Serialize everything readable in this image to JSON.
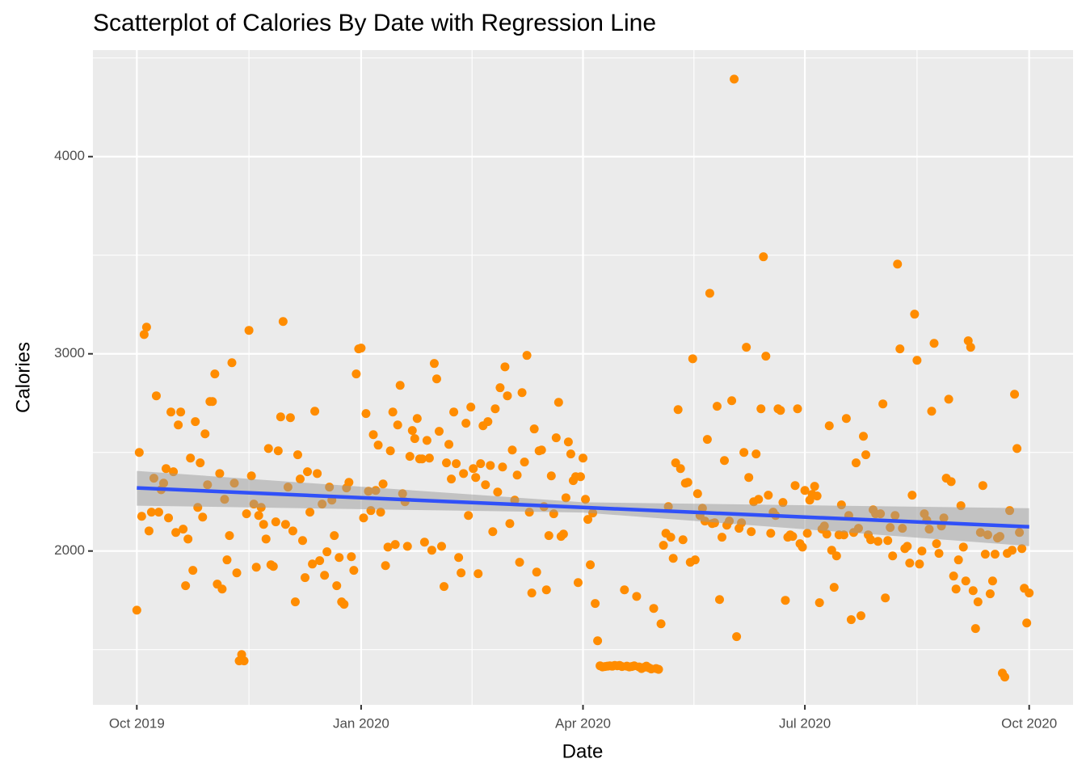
{
  "chart_data": {
    "type": "scatter",
    "title": "Scatterplot of Calories By Date with Regression Line",
    "x_label": "Date",
    "y_label": "Calories",
    "xlim": [
      -18,
      384
    ],
    "ylim": [
      1220,
      4540
    ],
    "xticks": [
      {
        "value": 0,
        "label": "Oct 2019"
      },
      {
        "value": 92,
        "label": "Jan 2020"
      },
      {
        "value": 183,
        "label": "Apr 2020"
      },
      {
        "value": 274,
        "label": "Jul 2020"
      },
      {
        "value": 366,
        "label": "Oct 2020"
      }
    ],
    "yticks": [
      2000,
      3000,
      4000
    ],
    "x_minor_ticks": [
      46,
      137.5,
      228.5,
      320
    ],
    "y_minor_ticks": [
      1500,
      2500,
      3500,
      4500
    ],
    "grid": true,
    "series": [
      {
        "name": "Calories",
        "color": "#ff8c00",
        "x": [
          0,
          1,
          2,
          3,
          4,
          5,
          6,
          7,
          8,
          9,
          10,
          11,
          12,
          13,
          14,
          15,
          16,
          17,
          18,
          19,
          20,
          21,
          22,
          23,
          24,
          25,
          26,
          27,
          28,
          29,
          30,
          31,
          32,
          33,
          34,
          35,
          36,
          37,
          38,
          39,
          40,
          41,
          42,
          43,
          44,
          45,
          46,
          47,
          48,
          49,
          50,
          51,
          52,
          53,
          54,
          55,
          56,
          57,
          58,
          59,
          60,
          61,
          62,
          63,
          64,
          65,
          66,
          67,
          68,
          69,
          70,
          71,
          72,
          73,
          74,
          75,
          76,
          77,
          78,
          79,
          80,
          81,
          82,
          83,
          84,
          85,
          86,
          87,
          88,
          89,
          90,
          91,
          92,
          93,
          94,
          95,
          96,
          97,
          98,
          99,
          100,
          101,
          102,
          103,
          104,
          105,
          106,
          107,
          108,
          109,
          110,
          111,
          112,
          113,
          114,
          115,
          116,
          117,
          118,
          119,
          120,
          121,
          122,
          123,
          124,
          125,
          126,
          127,
          128,
          129,
          130,
          131,
          132,
          133,
          134,
          135,
          136,
          137,
          138,
          139,
          140,
          141,
          142,
          143,
          144,
          145,
          146,
          147,
          148,
          149,
          150,
          151,
          152,
          153,
          154,
          155,
          156,
          157,
          158,
          159,
          160,
          161,
          162,
          163,
          164,
          165,
          166,
          167,
          168,
          169,
          170,
          171,
          172,
          173,
          174,
          175,
          176,
          177,
          178,
          179,
          180,
          181,
          182,
          183,
          184,
          185,
          186,
          187,
          188,
          189,
          190,
          191,
          192,
          193,
          194,
          195,
          196,
          197,
          198,
          199,
          200,
          201,
          202,
          203,
          204,
          205,
          206,
          207,
          208,
          209,
          210,
          211,
          212,
          213,
          214,
          215,
          216,
          217,
          218,
          219,
          220,
          221,
          222,
          223,
          224,
          225,
          226,
          227,
          228,
          229,
          230,
          231,
          232,
          233,
          234,
          235,
          236,
          237,
          238,
          239,
          240,
          241,
          242,
          243,
          244,
          245,
          246,
          247,
          248,
          249,
          250,
          251,
          252,
          253,
          254,
          255,
          256,
          257,
          258,
          259,
          260,
          261,
          262,
          263,
          264,
          265,
          266,
          267,
          268,
          269,
          270,
          271,
          272,
          273,
          274,
          275,
          276,
          277,
          278,
          279,
          280,
          281,
          282,
          283,
          284,
          285,
          286,
          287,
          288,
          289,
          290,
          291,
          292,
          293,
          294,
          295,
          296,
          297,
          298,
          299,
          300,
          301,
          302,
          303,
          304,
          305,
          306,
          307,
          308,
          309,
          310,
          311,
          312,
          313,
          314,
          315,
          316,
          317,
          318,
          319,
          320,
          321,
          322,
          323,
          324,
          325,
          326,
          327,
          328,
          329,
          330,
          331,
          332,
          333,
          334,
          335,
          336,
          337,
          338,
          339,
          340,
          341,
          342,
          343,
          344,
          345,
          346,
          347,
          348,
          349,
          350,
          351,
          352,
          353,
          354,
          355,
          356,
          357,
          358,
          359,
          360,
          361,
          362,
          363,
          364,
          365,
          366
        ],
        "values": [
          1700,
          2500,
          2176,
          3098,
          3135,
          2102,
          2197,
          2369,
          2787,
          2197,
          2311,
          2344,
          2418,
          2168,
          2705,
          2402,
          2094,
          2639,
          2705,
          2111,
          1824,
          2061,
          2471,
          1902,
          2656,
          2221,
          2447,
          2172,
          2594,
          2336,
          2758,
          2758,
          2898,
          1832,
          2393,
          1807,
          2262,
          1955,
          2078,
          2955,
          2344,
          1889,
          1443,
          1475,
          1443,
          2189,
          3119,
          2381,
          2238,
          1918,
          2180,
          2221,
          2135,
          2061,
          2520,
          1930,
          1922,
          2148,
          2508,
          2680,
          3164,
          2135,
          2324,
          2676,
          2102,
          1742,
          2488,
          2365,
          2053,
          1865,
          2402,
          2197,
          1934,
          2709,
          2393,
          1951,
          2238,
          1877,
          1996,
          2324,
          2258,
          2078,
          1824,
          1967,
          1742,
          1730,
          2320,
          2348,
          1971,
          1902,
          2898,
          3025,
          3029,
          2168,
          2697,
          2303,
          2205,
          2590,
          2307,
          2537,
          2197,
          2340,
          1926,
          2020,
          2508,
          2705,
          2033,
          2639,
          2840,
          2291,
          2250,
          2024,
          2480,
          2611,
          2570,
          2672,
          2467,
          2467,
          2045,
          2561,
          2471,
          2004,
          2951,
          2873,
          2607,
          2024,
          1820,
          2447,
          2541,
          2365,
          2705,
          2443,
          1967,
          1889,
          2393,
          2648,
          2180,
          2730,
          2418,
          2373,
          1885,
          2443,
          2635,
          2336,
          2656,
          2434,
          2098,
          2721,
          2299,
          2828,
          2426,
          2934,
          2787,
          2139,
          2512,
          2258,
          2385,
          1943,
          2803,
          2451,
          2992,
          2197,
          1787,
          2619,
          1893,
          2508,
          2512,
          2225,
          1803,
          2078,
          2381,
          2189,
          2574,
          2754,
          2074,
          2086,
          2270,
          2553,
          2492,
          2357,
          2377,
          1840,
          2377,
          2471,
          2262,
          2160,
          1930,
          2193,
          1734,
          1545,
          1418,
          1412,
          1414,
          1416,
          1418,
          1416,
          1420,
          1418,
          1420,
          1414,
          1803,
          1416,
          1412,
          1414,
          1418,
          1770,
          1412,
          1404,
          1410,
          1416,
          1408,
          1402,
          1709,
          1404,
          1400,
          1631,
          2029,
          2090,
          2225,
          2070,
          1963,
          2447,
          2717,
          2418,
          2057,
          2344,
          2348,
          1943,
          2975,
          1955,
          2291,
          2180,
          2217,
          2152,
          2566,
          3307,
          2139,
          2143,
          2734,
          1754,
          2070,
          2459,
          2131,
          2152,
          2762,
          4393,
          1566,
          2115,
          2143,
          2500,
          3033,
          2373,
          2098,
          2250,
          2492,
          2262,
          2721,
          3492,
          2988,
          2283,
          2090,
          2197,
          2180,
          2721,
          2713,
          2246,
          1750,
          2070,
          2082,
          2074,
          2332,
          2721,
          2037,
          2020,
          2307,
          2090,
          2258,
          2287,
          2328,
          2279,
          1738,
          2111,
          2127,
          2086,
          2635,
          2004,
          1816,
          1975,
          2082,
          2234,
          2082,
          2672,
          2180,
          1652,
          2094,
          2447,
          2115,
          1672,
          2582,
          2488,
          2082,
          2057,
          2209,
          2189,
          2049,
          2189,
          2746,
          1762,
          2053,
          2119,
          1975,
          2180,
          3455,
          3025,
          2115,
          2012,
          2024,
          1939,
          2283,
          3201,
          2967,
          1934,
          2000,
          2189,
          2156,
          2111,
          2709,
          3053,
          2037,
          1988,
          2127,
          2168,
          2369,
          2770,
          2352,
          1873,
          1807,
          1955,
          2230,
          2020,
          1848,
          3066,
          3033,
          1799,
          1607,
          1742,
          2094,
          2332,
          1984,
          2082,
          1783,
          1848,
          1984,
          2066,
          2074,
          1381,
          1361,
          1988,
          2205,
          2004,
          2795,
          2520,
          2094,
          2012,
          1811,
          1635,
          1787
        ]
      }
    ],
    "regression": {
      "color": "#3050f8",
      "band_color": "#999999",
      "x": [
        0,
        183,
        366
      ],
      "values": [
        2320,
        2221,
        2123
      ],
      "lower": [
        2230,
        2195,
        2025
      ],
      "upper": [
        2406,
        2247,
        2217
      ]
    }
  }
}
